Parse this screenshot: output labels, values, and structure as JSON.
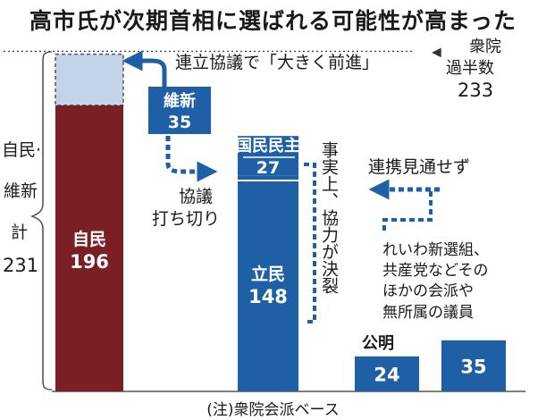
{
  "title": "高市氏が次期首相に選ばれる可能性が高まった",
  "majority": {
    "label_line1": "衆院",
    "label_line2": "過半数",
    "value": 233
  },
  "coalition_brace": {
    "line1": "自民·",
    "line2": "維新",
    "line3": "計",
    "value": "231"
  },
  "annotations": {
    "renritsu": "連立協議で「大きく前進」",
    "kyogi_line1": "協議",
    "kyogi_line2": "打ち切り",
    "ketsuretsu": "事実上、協力が決裂",
    "renkei": "連携見通せず",
    "others_line1": "れいわ新選組、",
    "others_line2": "共産党などその",
    "others_line3": "ほかの会派や",
    "others_line4": "無所属の議員"
  },
  "chart_data": {
    "type": "bar",
    "title": "高市氏が次期首相に選ばれる可能性が高まった",
    "ylim": [
      0,
      240
    ],
    "reference_line": {
      "label": "衆院過半数",
      "value": 233
    },
    "bars": [
      {
        "party": "自民",
        "value": 196,
        "color": "#7a1f24",
        "stack": "自民・維新",
        "label": "自民",
        "value_label": "196"
      },
      {
        "party": "維新",
        "value": 35,
        "color": "#c3d3ea",
        "stack": "自民・維新",
        "label": "維新",
        "value_label": "35"
      },
      {
        "party": "立民",
        "value": 148,
        "color": "#1e5fa6",
        "stack": "立民・国民民主",
        "label": "立民",
        "value_label": "148"
      },
      {
        "party": "国民民主",
        "value": 27,
        "color": "#1e5fa6",
        "stack": "立民・国民民主",
        "label": "国民民主",
        "value_label": "27"
      },
      {
        "party": "公明",
        "value": 24,
        "color": "#1e5fa6",
        "stack": "公明",
        "label": "公明",
        "value_label": "24"
      },
      {
        "party": "その他",
        "value": 35,
        "color": "#1e5fa6",
        "stack": "その他",
        "label": "",
        "value_label": "35"
      }
    ]
  },
  "footnote": "(注)衆院会派ベース"
}
